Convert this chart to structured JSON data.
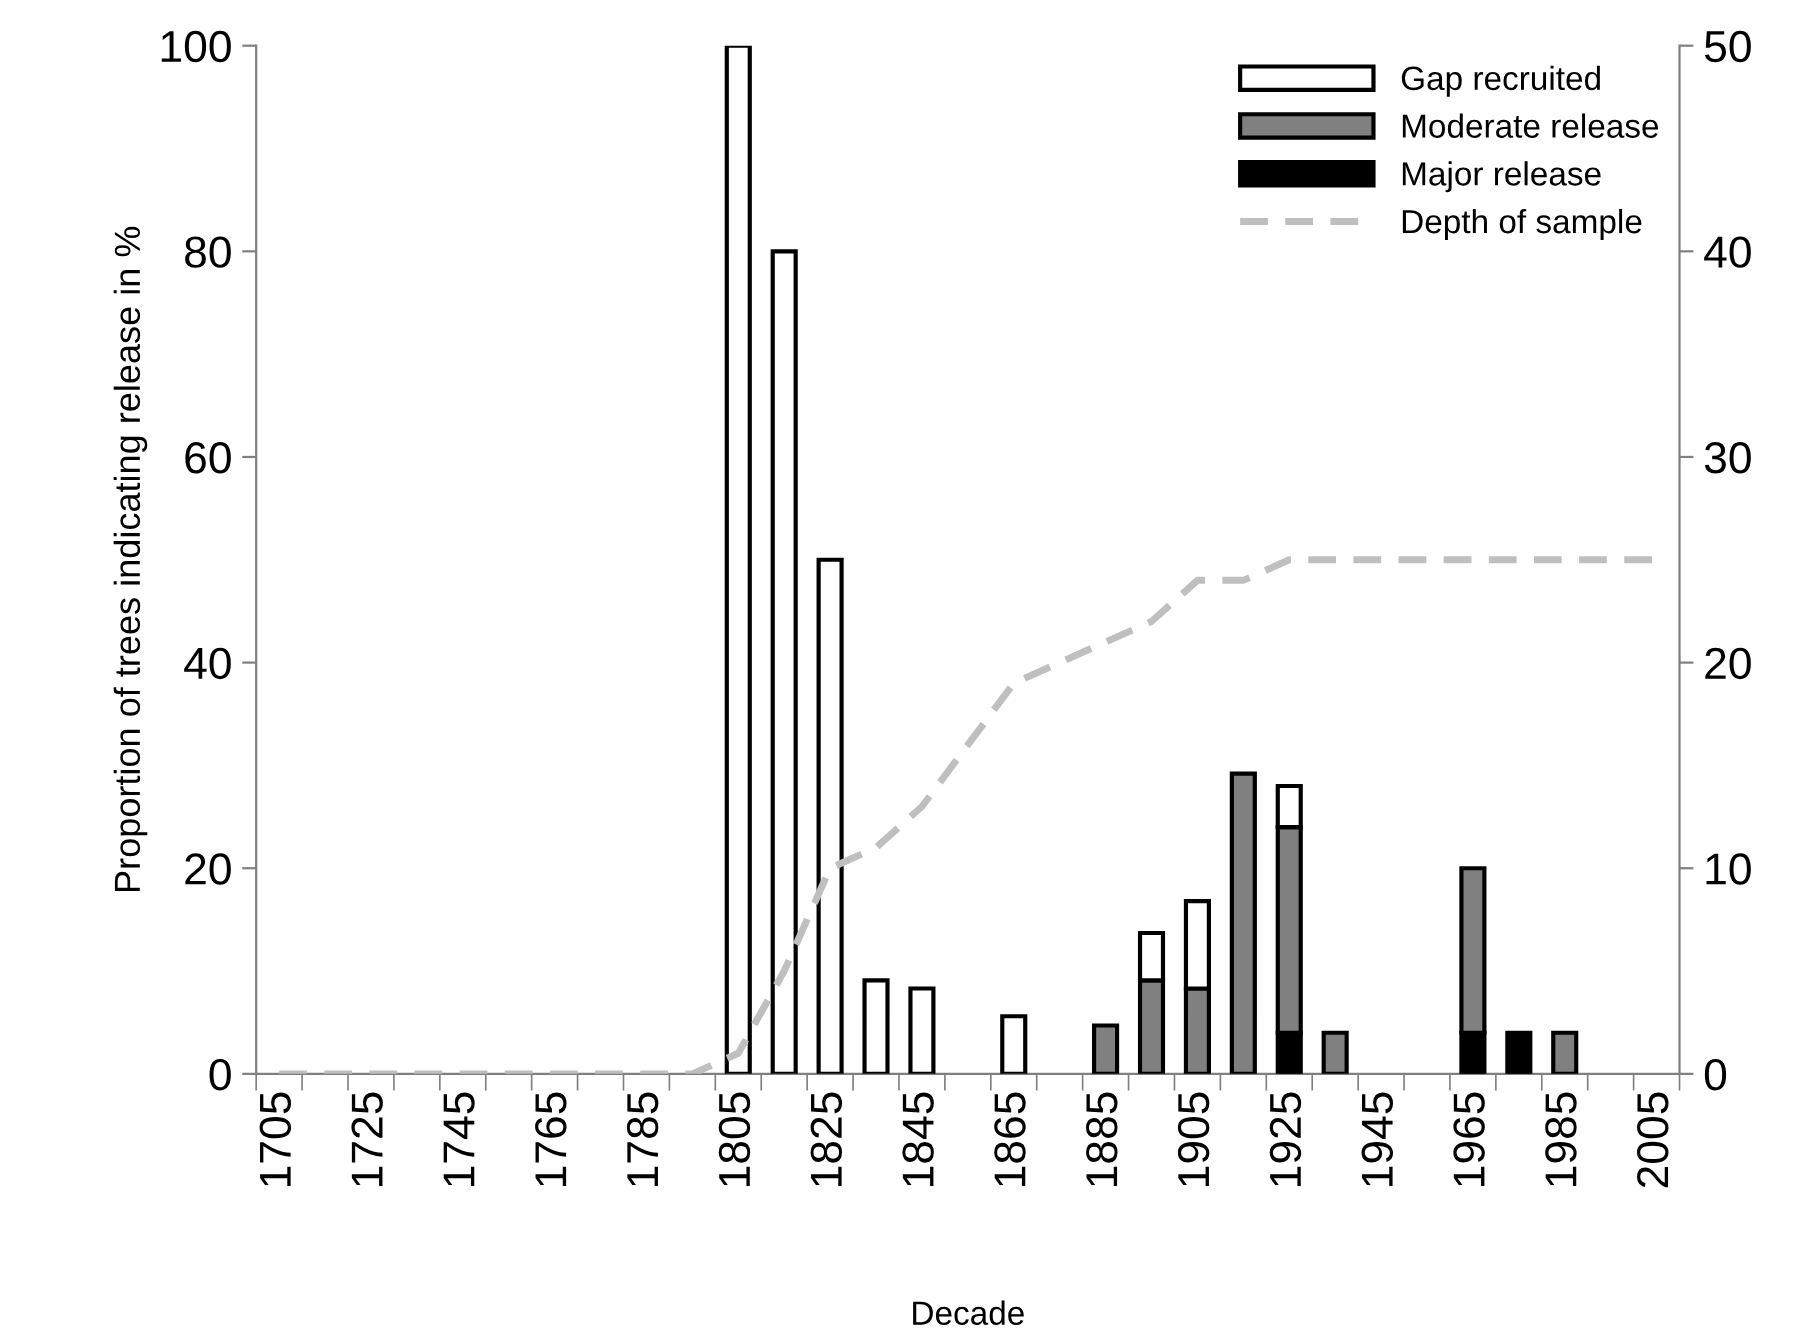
{
  "chart_data": {
    "type": "bar",
    "stacked": true,
    "xlabel": "Decade",
    "ylabel": "Proportion of trees indicating release in %",
    "categories": [
      "1705",
      null,
      "1725",
      null,
      "1745",
      null,
      "1765",
      null,
      "1785",
      null,
      "1805",
      null,
      "1825",
      null,
      "1845",
      null,
      "1865",
      null,
      "1885",
      null,
      "1905",
      null,
      "1925",
      null,
      "1945",
      null,
      "1965",
      null,
      "1985",
      null,
      "2005"
    ],
    "series": [
      {
        "name": "Major release",
        "color": "#000000",
        "values": [
          null,
          null,
          null,
          null,
          null,
          null,
          null,
          null,
          null,
          null,
          null,
          null,
          null,
          null,
          null,
          null,
          null,
          null,
          null,
          null,
          null,
          null,
          4,
          null,
          null,
          null,
          4,
          4,
          null,
          null,
          null
        ]
      },
      {
        "name": "Moderate release",
        "color": "#808080",
        "values": [
          null,
          null,
          null,
          null,
          null,
          null,
          null,
          null,
          null,
          null,
          null,
          null,
          null,
          null,
          null,
          null,
          null,
          null,
          4.7,
          9.1,
          8.3,
          29.2,
          20,
          4,
          null,
          null,
          16,
          null,
          4,
          null,
          null
        ]
      },
      {
        "name": "Gap recruited",
        "color": "#ffffff",
        "values": [
          null,
          null,
          null,
          null,
          null,
          null,
          null,
          null,
          null,
          null,
          100,
          80,
          50,
          9.1,
          8.3,
          null,
          5.6,
          null,
          null,
          4.6,
          8.5,
          null,
          4,
          null,
          null,
          null,
          null,
          null,
          null,
          null,
          null
        ]
      },
      {
        "name": "Depth of sample",
        "type": "line",
        "axis": "y2",
        "color": "#bfbfbf",
        "line_style": "dashed",
        "values": [
          0,
          0,
          0,
          0,
          0,
          0,
          0,
          0,
          0,
          0,
          1,
          5,
          10,
          11,
          13,
          16,
          19,
          20,
          21,
          22,
          24,
          24,
          25,
          25,
          25,
          25,
          25,
          25,
          25,
          25,
          25
        ]
      }
    ],
    "ylim": [
      0,
      100
    ],
    "yticks": [
      0,
      20,
      40,
      60,
      80,
      100
    ],
    "y2lim": [
      0,
      50
    ],
    "y2ticks": [
      0,
      10,
      20,
      30,
      40,
      50
    ],
    "grid": false,
    "legend": "top right",
    "marker": "none"
  }
}
